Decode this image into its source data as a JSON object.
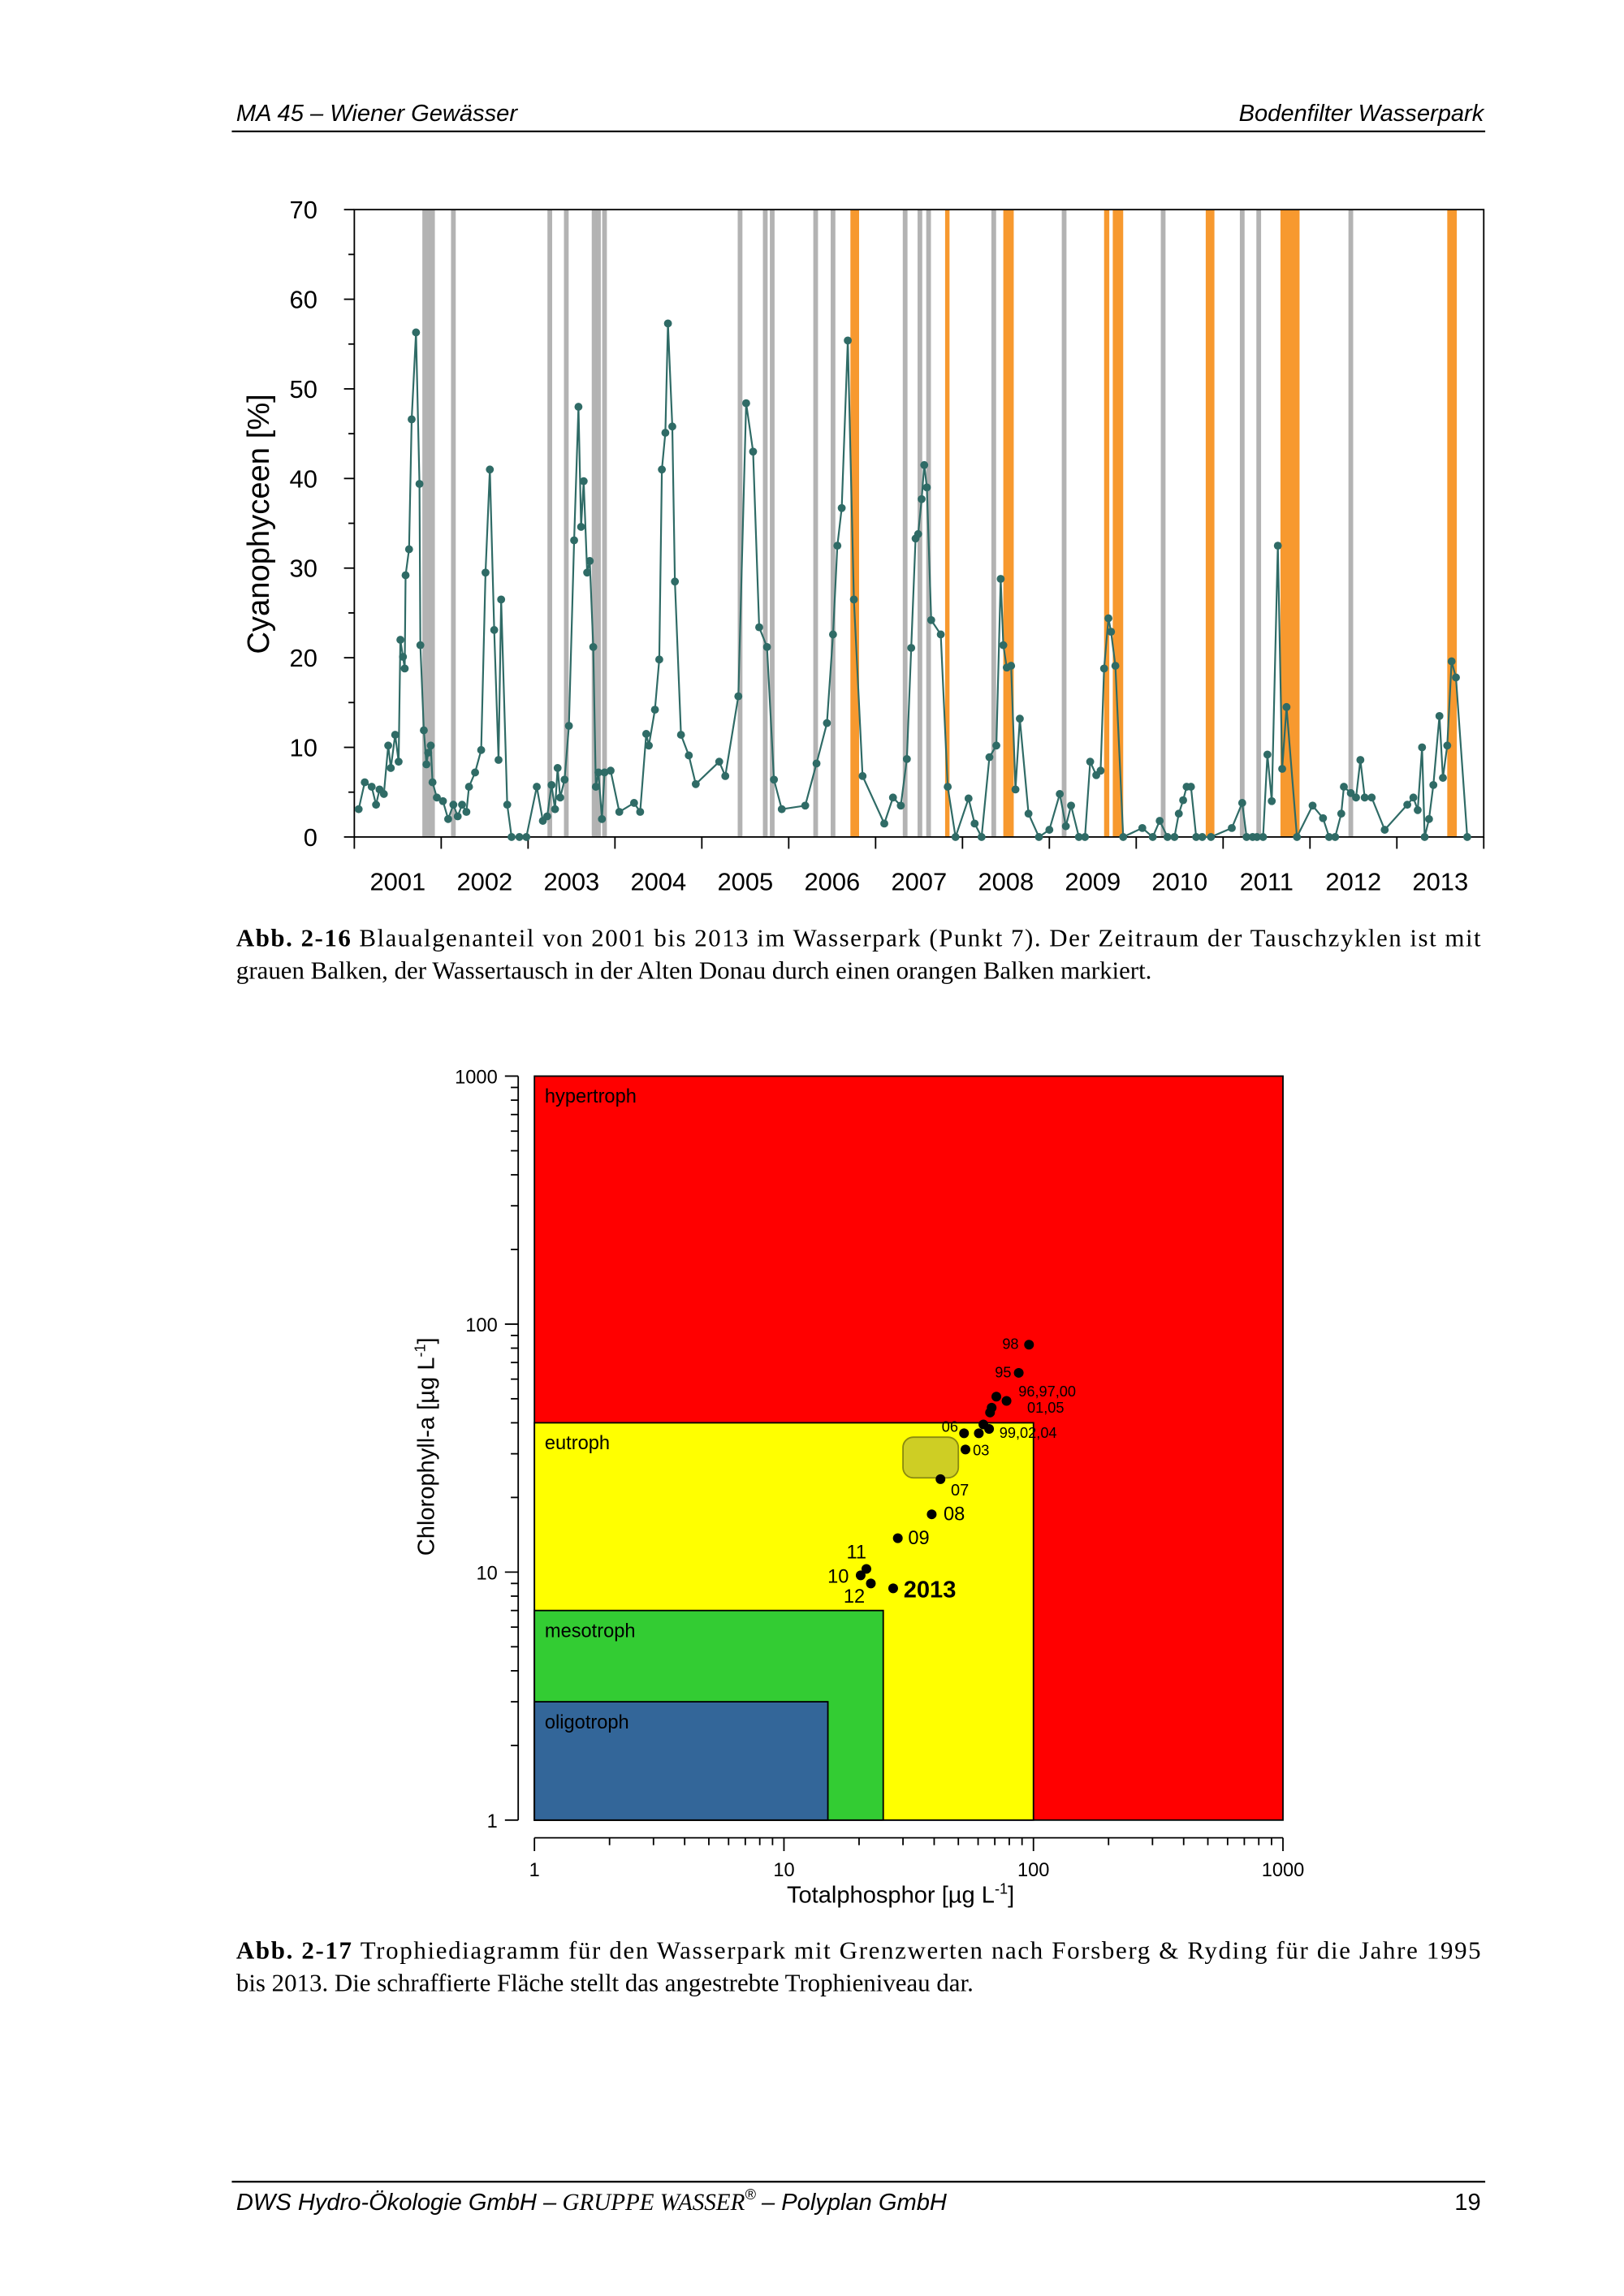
{
  "header": {
    "left": "MA 45 – Wiener Gewässer",
    "right": "Bodenfilter Wasserpark"
  },
  "chart_data": [
    {
      "type": "line",
      "ylabel": "Cyanophyceen [%]",
      "color": "#2f6b66",
      "xlim": [
        2001,
        2014
      ],
      "ylim": [
        0,
        70
      ],
      "xticks": [
        {
          "value": 2001.5,
          "label": "2001"
        },
        {
          "value": 2002.5,
          "label": "2002"
        },
        {
          "value": 2003.5,
          "label": "2003"
        },
        {
          "value": 2004.5,
          "label": "2004"
        },
        {
          "value": 2005.5,
          "label": "2005"
        },
        {
          "value": 2006.5,
          "label": "2006"
        },
        {
          "value": 2007.5,
          "label": "2007"
        },
        {
          "value": 2008.5,
          "label": "2008"
        },
        {
          "value": 2009.5,
          "label": "2009"
        },
        {
          "value": 2010.5,
          "label": "2010"
        },
        {
          "value": 2011.5,
          "label": "2011"
        },
        {
          "value": 2012.5,
          "label": "2012"
        },
        {
          "value": 2013.5,
          "label": "2013"
        }
      ],
      "yticks": [
        0,
        10,
        20,
        30,
        40,
        50,
        60,
        70
      ],
      "x": [
        2001.05,
        2001.12,
        2001.2,
        2001.25,
        2001.29,
        2001.34,
        2001.39,
        2001.42,
        2001.47,
        2001.51,
        2001.53,
        2001.56,
        2001.58,
        2001.59,
        2001.63,
        2001.66,
        2001.71,
        2001.75,
        2001.76,
        2001.8,
        2001.83,
        2001.85,
        2001.88,
        2001.9,
        2001.95,
        2002.02,
        2002.08,
        2002.14,
        2002.19,
        2002.24,
        2002.29,
        2002.32,
        2002.39,
        2002.46,
        2002.51,
        2002.56,
        2002.61,
        2002.66,
        2002.69,
        2002.76,
        2002.81,
        2002.9,
        2002.98,
        2003.1,
        2003.17,
        2003.22,
        2003.27,
        2003.31,
        2003.34,
        2003.37,
        2003.42,
        2003.47,
        2003.53,
        2003.58,
        2003.61,
        2003.64,
        2003.68,
        2003.71,
        2003.75,
        2003.78,
        2003.81,
        2003.85,
        2003.88,
        2003.95,
        2004.05,
        2004.22,
        2004.29,
        2004.36,
        2004.39,
        2004.46,
        2004.51,
        2004.54,
        2004.58,
        2004.61,
        2004.66,
        2004.69,
        2004.76,
        2004.85,
        2004.93,
        2005.2,
        2005.27,
        2005.42,
        2005.51,
        2005.59,
        2005.66,
        2005.75,
        2005.83,
        2005.92,
        2006.19,
        2006.32,
        2006.44,
        2006.51,
        2006.56,
        2006.61,
        2006.68,
        2006.75,
        2006.85,
        2007.1,
        2007.2,
        2007.29,
        2007.36,
        2007.41,
        2007.46,
        2007.49,
        2007.53,
        2007.56,
        2007.59,
        2007.64,
        2007.75,
        2007.83,
        2007.92,
        2008.07,
        2008.14,
        2008.22,
        2008.31,
        2008.39,
        2008.44,
        2008.47,
        2008.51,
        2008.56,
        2008.61,
        2008.66,
        2008.76,
        2008.88,
        2009.0,
        2009.12,
        2009.19,
        2009.25,
        2009.34,
        2009.41,
        2009.47,
        2009.54,
        2009.59,
        2009.63,
        2009.68,
        2009.71,
        2009.76,
        2009.85,
        2010.07,
        2010.19,
        2010.27,
        2010.36,
        2010.44,
        2010.49,
        2010.54,
        2010.58,
        2010.63,
        2010.69,
        2010.76,
        2010.86,
        2011.1,
        2011.22,
        2011.27,
        2011.34,
        2011.39,
        2011.46,
        2011.51,
        2011.56,
        2011.63,
        2011.68,
        2011.73,
        2011.85,
        2012.03,
        2012.15,
        2012.22,
        2012.29,
        2012.36,
        2012.39,
        2012.47,
        2012.53,
        2012.58,
        2012.63,
        2012.71,
        2012.86,
        2013.12,
        2013.19,
        2013.24,
        2013.29,
        2013.32,
        2013.37,
        2013.42,
        2013.49,
        2013.53,
        2013.58,
        2013.63,
        2013.68,
        2013.81
      ],
      "y": [
        3.1,
        6.1,
        5.6,
        3.6,
        5.3,
        4.8,
        10.2,
        7.7,
        11.4,
        8.4,
        22,
        20.1,
        18.8,
        29.2,
        32.1,
        46.6,
        56.3,
        39.4,
        21.4,
        11.9,
        8.1,
        9.4,
        10.2,
        6.1,
        4.4,
        4.0,
        2.0,
        3.6,
        2.3,
        3.6,
        2.8,
        5.6,
        7.2,
        9.7,
        29.5,
        41.0,
        23.1,
        8.6,
        26.5,
        3.6,
        0,
        0,
        0,
        5.6,
        1.8,
        2.3,
        5.8,
        3.1,
        7.7,
        4.4,
        6.4,
        12.4,
        33.1,
        48.0,
        34.6,
        39.7,
        29.5,
        30.8,
        21.2,
        5.6,
        7.2,
        2.0,
        7.2,
        7.4,
        2.8,
        3.8,
        2.8,
        11.5,
        10.2,
        14.2,
        19.8,
        41.0,
        45.1,
        57.3,
        45.8,
        28.5,
        11.4,
        9.1,
        5.9,
        8.4,
        6.8,
        15.7,
        48.4,
        43.0,
        23.4,
        21.2,
        6.4,
        3.1,
        3.5,
        8.2,
        12.7,
        22.6,
        32.5,
        36.7,
        55.4,
        26.5,
        6.8,
        1.5,
        4.4,
        3.5,
        8.7,
        21.1,
        33.3,
        33.8,
        37.7,
        41.5,
        39.0,
        24.2,
        22.6,
        5.6,
        0,
        4.3,
        1.5,
        0,
        8.9,
        10.2,
        28.8,
        21.4,
        18.9,
        19.1,
        5.3,
        13.2,
        2.6,
        0,
        0.8,
        4.8,
        1.2,
        3.5,
        0,
        0,
        8.4,
        6.9,
        7.4,
        18.8,
        24.4,
        22.9,
        19.1,
        0,
        1.0,
        0,
        1.8,
        0,
        0,
        2.6,
        4.1,
        5.6,
        5.6,
        0,
        0,
        0,
        1.0,
        3.8,
        0,
        0,
        0,
        0,
        9.2,
        4.0,
        32.5,
        7.6,
        14.5,
        0,
        3.5,
        2.1,
        0,
        0,
        2.6,
        5.6,
        4.9,
        4.4,
        8.6,
        4.4,
        4.4,
        0.8,
        3.6,
        4.4,
        3.0,
        10.0,
        0,
        2.0,
        5.8,
        13.5,
        6.6,
        10.2,
        19.6,
        17.8,
        0
      ],
      "gray_bars": {
        "color": "#b3b3b3",
        "x": [
          2001.81,
          2001.85,
          2001.9,
          2002.14,
          2003.25,
          2003.44,
          2003.76,
          2003.81,
          2003.88,
          2005.44,
          2005.73,
          2005.81,
          2006.31,
          2006.51,
          2007.34,
          2007.51,
          2007.61,
          2008.36,
          2009.17,
          2010.31,
          2011.22,
          2011.41,
          2012.47
        ]
      },
      "orange_bars": {
        "color": "#f7992f",
        "x": [
          [
            2006.71,
            2006.81
          ],
          [
            2007.8,
            2007.83
          ],
          [
            2008.47,
            2008.59
          ],
          [
            2009.63,
            2009.69
          ],
          [
            2009.73,
            2009.85
          ],
          [
            2010.8,
            2010.9
          ],
          [
            2011.66,
            2011.88
          ],
          [
            2013.58,
            2013.69
          ]
        ]
      }
    },
    {
      "type": "scatter",
      "log": true,
      "xlabel": [
        "Totalphosphor [µg L",
        "-1",
        "]"
      ],
      "ylabel": [
        "Chlorophyll-a [µg L",
        "-1",
        "]"
      ],
      "xlim": [
        1,
        1000
      ],
      "ylim": [
        1,
        1000
      ],
      "xticks": [
        1,
        10,
        100,
        1000
      ],
      "yticks": [
        1,
        10,
        100,
        1000
      ],
      "zones": [
        {
          "name": "hypertroph",
          "color": "#ff0000",
          "xlim": [
            1,
            1000
          ],
          "ylim": [
            1,
            1000
          ]
        },
        {
          "name": "eutroph",
          "color": "#ffff00",
          "xlim": [
            1,
            100
          ],
          "ylim": [
            1,
            40
          ]
        },
        {
          "name": "mesotroph",
          "color": "#33cc33",
          "xlim": [
            1,
            25
          ],
          "ylim": [
            1,
            7
          ]
        },
        {
          "name": "oligotroph",
          "color": "#336699",
          "xlim": [
            1,
            15
          ],
          "ylim": [
            1,
            3
          ]
        }
      ],
      "target": {
        "color": "#c6c62a",
        "xlim": [
          30,
          50
        ],
        "ylim": [
          24,
          35
        ]
      },
      "color": "#000000",
      "x": [
        96,
        87.3,
        71,
        78,
        68,
        67,
        63,
        66.4,
        60.4,
        52.7,
        53.4,
        42.4,
        39.1,
        28.6,
        21.4,
        20.3,
        22.3,
        27.4
      ],
      "y": [
        82.6,
        63.6,
        51,
        49,
        46,
        44,
        39.4,
        37.8,
        36.3,
        36.3,
        31.2,
        23.7,
        17.1,
        13.7,
        10.3,
        9.7,
        9.0,
        8.6
      ],
      "labels": [
        "98",
        "95",
        "96,97,00",
        "01,05",
        null,
        null,
        null,
        "99,02,04",
        null,
        "06",
        "03",
        "07",
        "08",
        "09",
        "11",
        "10",
        "12",
        "2013"
      ]
    }
  ],
  "captions": [
    {
      "label": "Abb. 2-16",
      "lines": [
        "Blaualgenanteil von 2001 bis 2013 im Wasserpark (Punkt 7). Der Zeitraum der Tauschzyklen ist mit",
        "grauen Balken, der Wassertausch in der Alten Donau durch einen orangen Balken markiert."
      ]
    },
    {
      "label": "Abb. 2-17",
      "lines": [
        "Trophiediagramm für den Wasserpark mit Grenzwerten nach Forsberg & Ryding für die Jahre 1995",
        "bis 2013. Die schraffierte Fläche stellt das angestrebte Trophieniveau dar."
      ]
    }
  ],
  "footer": {
    "parts": [
      "DWS Hydro-Ökologie GmbH –",
      "GRUPPE WASSER",
      "®",
      "– Polyplan GmbH"
    ],
    "page": "19"
  }
}
